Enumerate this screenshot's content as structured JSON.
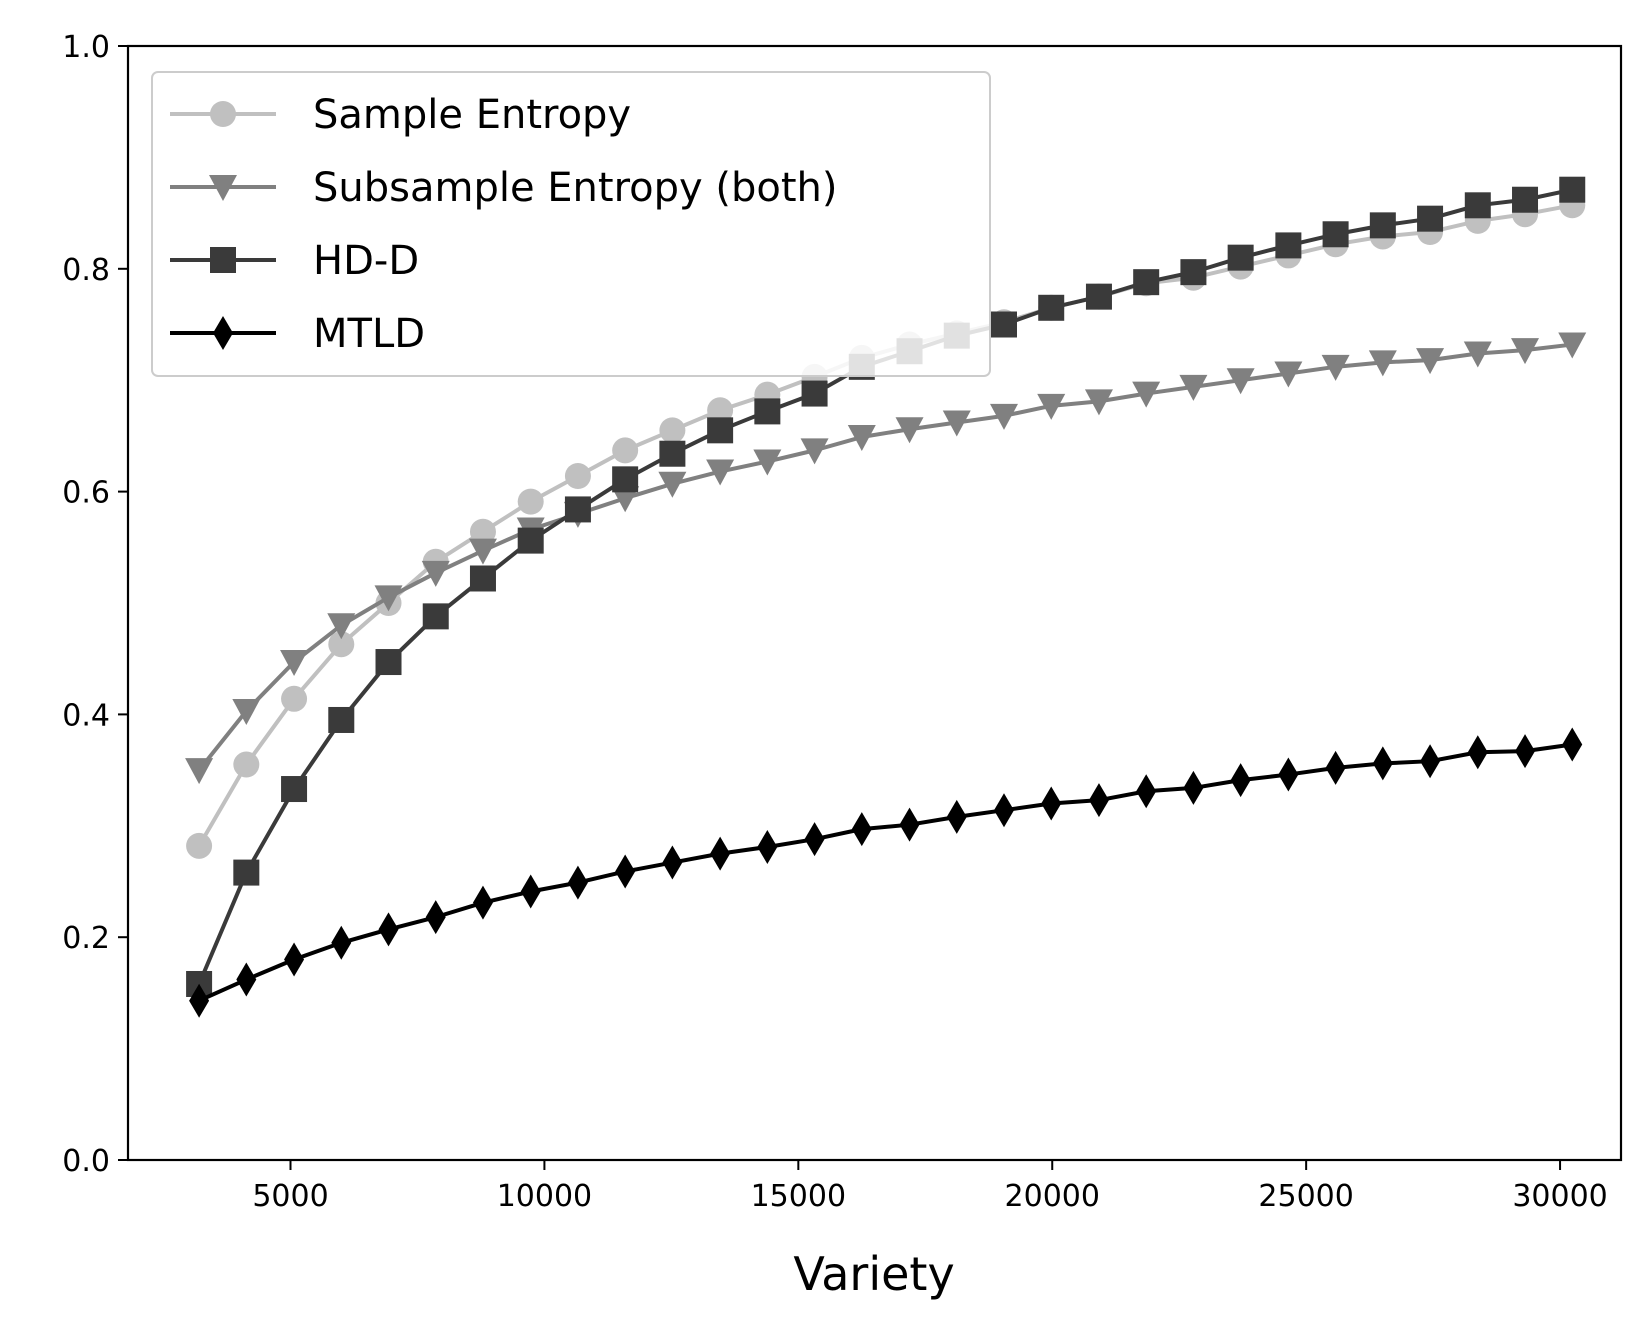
{
  "chart_data": {
    "type": "line",
    "title": "",
    "xlabel": "Variety",
    "ylabel": "",
    "xlim": [
      1800,
      31200
    ],
    "ylim": [
      0.0,
      1.0
    ],
    "xticks": [
      5000,
      10000,
      15000,
      20000,
      25000,
      30000
    ],
    "yticks": [
      0.0,
      0.2,
      0.4,
      0.6,
      0.8,
      1.0
    ],
    "xtick_labels": [
      "5000",
      "10000",
      "15000",
      "20000",
      "25000",
      "30000"
    ],
    "ytick_labels": [
      "0.0",
      "0.2",
      "0.4",
      "0.6",
      "0.8",
      "1.0"
    ],
    "grid": false,
    "legend_position": "top-left",
    "x": [
      3200,
      4130,
      5070,
      6000,
      6930,
      7860,
      8790,
      9730,
      10660,
      11590,
      12520,
      13460,
      14390,
      15320,
      16250,
      17190,
      18120,
      19050,
      19980,
      20920,
      21850,
      22780,
      23710,
      24650,
      25580,
      26510,
      27440,
      28380,
      29310,
      30240
    ],
    "series": [
      {
        "name": "Sample Entropy",
        "color": "#c0c0c0",
        "marker": "circle",
        "values": [
          0.282,
          0.355,
          0.414,
          0.463,
          0.5,
          0.537,
          0.564,
          0.591,
          0.614,
          0.637,
          0.655,
          0.673,
          0.687,
          0.703,
          0.72,
          0.732,
          0.742,
          0.752,
          0.765,
          0.775,
          0.787,
          0.792,
          0.802,
          0.812,
          0.822,
          0.829,
          0.833,
          0.843,
          0.849,
          0.857
        ]
      },
      {
        "name": "Subsample Entropy (both)",
        "color": "#808080",
        "marker": "triangle-down",
        "values": [
          0.35,
          0.403,
          0.447,
          0.48,
          0.505,
          0.527,
          0.547,
          0.566,
          0.58,
          0.594,
          0.607,
          0.618,
          0.627,
          0.637,
          0.649,
          0.656,
          0.662,
          0.668,
          0.677,
          0.681,
          0.688,
          0.694,
          0.7,
          0.706,
          0.712,
          0.716,
          0.718,
          0.724,
          0.727,
          0.732
        ]
      },
      {
        "name": "HD-D",
        "color": "#3a3a3a",
        "marker": "square",
        "values": [
          0.158,
          0.258,
          0.333,
          0.395,
          0.447,
          0.488,
          0.522,
          0.556,
          0.584,
          0.611,
          0.634,
          0.655,
          0.672,
          0.688,
          0.712,
          0.726,
          0.74,
          0.75,
          0.765,
          0.775,
          0.788,
          0.797,
          0.81,
          0.821,
          0.831,
          0.839,
          0.845,
          0.857,
          0.862,
          0.871
        ]
      },
      {
        "name": "MTLD",
        "color": "#000000",
        "marker": "diamond",
        "values": [
          0.143,
          0.162,
          0.18,
          0.195,
          0.207,
          0.218,
          0.231,
          0.241,
          0.249,
          0.259,
          0.267,
          0.275,
          0.281,
          0.288,
          0.297,
          0.301,
          0.308,
          0.314,
          0.32,
          0.323,
          0.331,
          0.334,
          0.341,
          0.346,
          0.352,
          0.356,
          0.358,
          0.366,
          0.367,
          0.373
        ]
      }
    ]
  }
}
